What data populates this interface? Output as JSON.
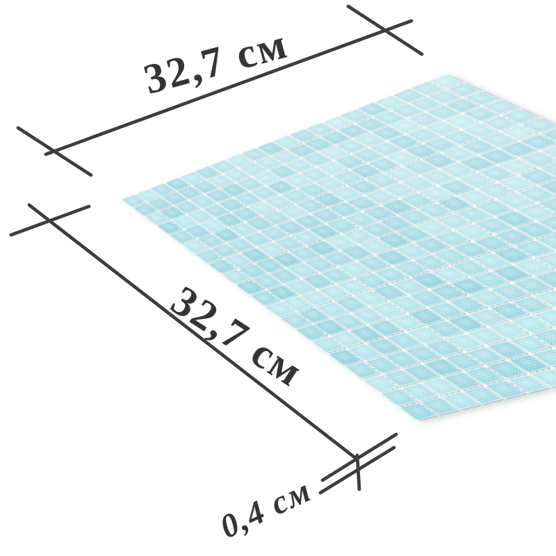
{
  "diagram": {
    "description": "Mosaic tile sheet with dimension callouts",
    "width_label": "32,7 см",
    "depth_label": "32,7 см",
    "thickness_label": "0,4 см"
  },
  "style": {
    "background": "#ffffff",
    "line_color": "#3d3d3d",
    "text_color": "#343434"
  },
  "mosaic": {
    "rows": 20,
    "cols": 20,
    "tile_palette": [
      "#a5dce6",
      "#99d6e2",
      "#aee1ea",
      "#90d2df",
      "#a0dae5",
      "#b3e5ec"
    ],
    "grout_color": "#faf9f7",
    "speck_color": "#c9cdcc"
  }
}
